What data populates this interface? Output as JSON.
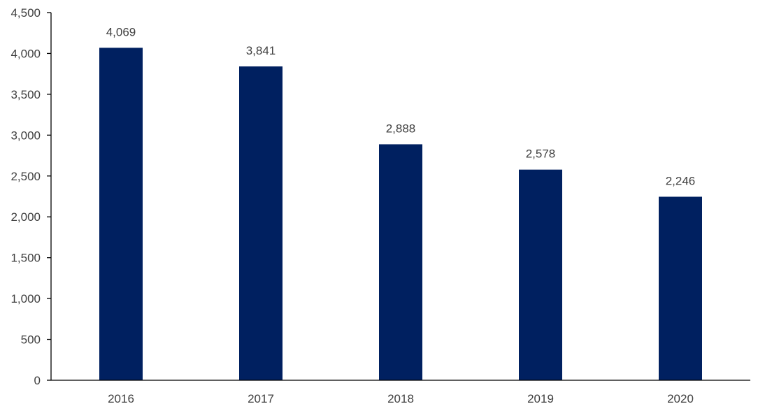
{
  "chart_data": {
    "type": "bar",
    "categories": [
      "2016",
      "2017",
      "2018",
      "2019",
      "2020"
    ],
    "values": [
      4069,
      3841,
      2888,
      2578,
      2246
    ],
    "data_labels": [
      "4,069",
      "3,841",
      "2,888",
      "2,578",
      "2,246"
    ],
    "title": "",
    "xlabel": "",
    "ylabel": "",
    "ylim": [
      0,
      4500
    ],
    "y_ticks": [
      0,
      500,
      1000,
      1500,
      2000,
      2500,
      3000,
      3500,
      4000,
      4500
    ],
    "y_tick_labels": [
      "0",
      "500",
      "1,000",
      "1,500",
      "2,000",
      "2,500",
      "3,000",
      "3,500",
      "4,000",
      "4,500"
    ],
    "grid": false,
    "legend": "none",
    "bar_color": "#002060",
    "axis_color": "#000000",
    "text_color": "#404040"
  }
}
